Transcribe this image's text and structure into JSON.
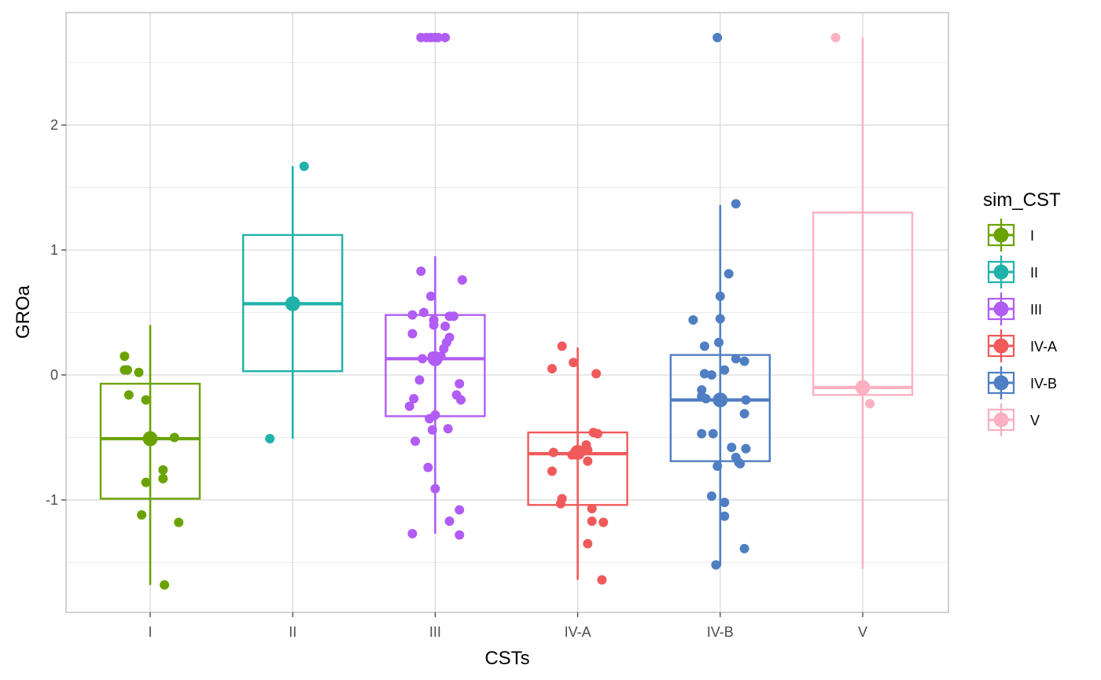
{
  "chart_data": {
    "type": "boxplot",
    "xlabel": "CSTs",
    "ylabel": "GROa",
    "categories": [
      "I",
      "II",
      "III",
      "IV-A",
      "IV-B",
      "V"
    ],
    "ylim": [
      -1.9,
      2.9
    ],
    "yticks": [
      -1,
      0,
      1,
      2
    ],
    "ytick_labels": [
      "-1",
      "0",
      "1",
      "2"
    ],
    "grid": true,
    "legend": {
      "title": "sim_CST",
      "position": "right",
      "entries": [
        "I",
        "II",
        "III",
        "IV-A",
        "IV-B",
        "V"
      ]
    },
    "series": [
      {
        "name": "I",
        "color": "#6AA300",
        "box": {
          "q1": -0.99,
          "median": -0.51,
          "q3": -0.07
        },
        "whisker": [
          -1.68,
          0.4
        ],
        "mean": -0.51,
        "points": [
          {
            "x": -0.18,
            "y": 0.15
          },
          {
            "x": -0.18,
            "y": 0.04
          },
          {
            "x": -0.16,
            "y": 0.04
          },
          {
            "x": -0.08,
            "y": 0.02
          },
          {
            "x": -0.15,
            "y": -0.16
          },
          {
            "x": -0.03,
            "y": -0.2
          },
          {
            "x": 0.17,
            "y": -0.5
          },
          {
            "x": 0.09,
            "y": -0.76
          },
          {
            "x": -0.03,
            "y": -0.86
          },
          {
            "x": 0.09,
            "y": -0.83
          },
          {
            "x": -0.06,
            "y": -1.12
          },
          {
            "x": 0.2,
            "y": -1.18
          },
          {
            "x": 0.1,
            "y": -1.68
          }
        ]
      },
      {
        "name": "II",
        "color": "#20B2AA",
        "box": {
          "q1": 0.03,
          "median": 0.57,
          "q3": 1.12
        },
        "whisker": [
          -0.51,
          1.67
        ],
        "mean": 0.57,
        "points": [
          {
            "x": 0.08,
            "y": 1.67
          },
          {
            "x": -0.16,
            "y": -0.51
          }
        ]
      },
      {
        "name": "III",
        "color": "#B15CF5",
        "box": {
          "q1": -0.33,
          "median": 0.13,
          "q3": 0.48
        },
        "whisker": [
          -1.27,
          0.95
        ],
        "mean": 0.13,
        "points": [
          {
            "x": -0.1,
            "y": 2.7
          },
          {
            "x": -0.06,
            "y": 2.7
          },
          {
            "x": -0.03,
            "y": 2.7
          },
          {
            "x": 0.0,
            "y": 2.7
          },
          {
            "x": 0.02,
            "y": 2.7
          },
          {
            "x": 0.07,
            "y": 2.7
          },
          {
            "x": -0.1,
            "y": 0.83
          },
          {
            "x": 0.19,
            "y": 0.76
          },
          {
            "x": -0.03,
            "y": 0.63
          },
          {
            "x": -0.16,
            "y": 0.48
          },
          {
            "x": -0.08,
            "y": 0.5
          },
          {
            "x": 0.1,
            "y": 0.47
          },
          {
            "x": 0.13,
            "y": 0.47
          },
          {
            "x": -0.01,
            "y": 0.44
          },
          {
            "x": -0.01,
            "y": 0.4
          },
          {
            "x": 0.07,
            "y": 0.39
          },
          {
            "x": -0.16,
            "y": 0.33
          },
          {
            "x": 0.1,
            "y": 0.3
          },
          {
            "x": 0.08,
            "y": 0.26
          },
          {
            "x": 0.06,
            "y": 0.21
          },
          {
            "x": -0.09,
            "y": 0.13
          },
          {
            "x": -0.02,
            "y": 0.15
          },
          {
            "x": 0.04,
            "y": 0.15
          },
          {
            "x": 0.01,
            "y": 0.13
          },
          {
            "x": -0.11,
            "y": -0.04
          },
          {
            "x": 0.17,
            "y": -0.07
          },
          {
            "x": 0.15,
            "y": -0.16
          },
          {
            "x": -0.15,
            "y": -0.19
          },
          {
            "x": 0.18,
            "y": -0.2
          },
          {
            "x": -0.18,
            "y": -0.25
          },
          {
            "x": -0.04,
            "y": -0.35
          },
          {
            "x": 0.0,
            "y": -0.32
          },
          {
            "x": -0.02,
            "y": -0.44
          },
          {
            "x": 0.09,
            "y": -0.43
          },
          {
            "x": -0.14,
            "y": -0.53
          },
          {
            "x": -0.05,
            "y": -0.74
          },
          {
            "x": 0.0,
            "y": -0.91
          },
          {
            "x": 0.17,
            "y": -1.08
          },
          {
            "x": 0.1,
            "y": -1.17
          },
          {
            "x": -0.16,
            "y": -1.27
          },
          {
            "x": 0.17,
            "y": -1.28
          }
        ]
      },
      {
        "name": "IV-A",
        "color": "#F05A5A",
        "box": {
          "q1": -1.04,
          "median": -0.63,
          "q3": -0.46
        },
        "whisker": [
          -1.64,
          0.22
        ],
        "mean": -0.62,
        "points": [
          {
            "x": -0.11,
            "y": 0.23
          },
          {
            "x": -0.18,
            "y": 0.05
          },
          {
            "x": -0.03,
            "y": 0.1
          },
          {
            "x": 0.13,
            "y": 0.01
          },
          {
            "x": 0.11,
            "y": -0.46
          },
          {
            "x": 0.14,
            "y": -0.47
          },
          {
            "x": 0.06,
            "y": -0.56
          },
          {
            "x": 0.02,
            "y": -0.62
          },
          {
            "x": -0.17,
            "y": -0.62
          },
          {
            "x": 0.07,
            "y": -0.6
          },
          {
            "x": -0.04,
            "y": -0.64
          },
          {
            "x": 0.07,
            "y": -0.69
          },
          {
            "x": -0.18,
            "y": -0.77
          },
          {
            "x": -0.11,
            "y": -0.99
          },
          {
            "x": -0.12,
            "y": -1.03
          },
          {
            "x": 0.1,
            "y": -1.07
          },
          {
            "x": 0.1,
            "y": -1.17
          },
          {
            "x": 0.18,
            "y": -1.18
          },
          {
            "x": 0.07,
            "y": -1.35
          },
          {
            "x": 0.17,
            "y": -1.64
          }
        ]
      },
      {
        "name": "IV-B",
        "color": "#4F7FC2",
        "box": {
          "q1": -0.69,
          "median": -0.2,
          "q3": 0.16
        },
        "whisker": [
          -1.53,
          1.36
        ],
        "mean": -0.2,
        "points": [
          {
            "x": -0.02,
            "y": 2.7
          },
          {
            "x": 0.11,
            "y": 1.37
          },
          {
            "x": 0.06,
            "y": 0.81
          },
          {
            "x": 0.0,
            "y": 0.63
          },
          {
            "x": -0.19,
            "y": 0.44
          },
          {
            "x": 0.0,
            "y": 0.45
          },
          {
            "x": -0.01,
            "y": 0.26
          },
          {
            "x": -0.11,
            "y": 0.23
          },
          {
            "x": 0.11,
            "y": 0.13
          },
          {
            "x": 0.17,
            "y": 0.11
          },
          {
            "x": 0.03,
            "y": 0.04
          },
          {
            "x": -0.11,
            "y": 0.01
          },
          {
            "x": -0.06,
            "y": 0.0
          },
          {
            "x": -0.13,
            "y": -0.12
          },
          {
            "x": -0.13,
            "y": -0.17
          },
          {
            "x": -0.1,
            "y": -0.19
          },
          {
            "x": 0.18,
            "y": -0.2
          },
          {
            "x": 0.17,
            "y": -0.31
          },
          {
            "x": -0.13,
            "y": -0.47
          },
          {
            "x": -0.05,
            "y": -0.47
          },
          {
            "x": 0.08,
            "y": -0.58
          },
          {
            "x": 0.18,
            "y": -0.59
          },
          {
            "x": 0.11,
            "y": -0.66
          },
          {
            "x": 0.13,
            "y": -0.7
          },
          {
            "x": -0.02,
            "y": -0.73
          },
          {
            "x": 0.14,
            "y": -0.71
          },
          {
            "x": -0.06,
            "y": -0.97
          },
          {
            "x": 0.03,
            "y": -1.02
          },
          {
            "x": 0.03,
            "y": -1.13
          },
          {
            "x": 0.17,
            "y": -1.39
          },
          {
            "x": -0.03,
            "y": -1.52
          }
        ]
      },
      {
        "name": "V",
        "color": "#FBB1C1",
        "box": {
          "q1": -0.16,
          "median": -0.1,
          "q3": 1.3
        },
        "whisker": [
          -1.55,
          2.7
        ],
        "mean": -0.1,
        "points": [
          {
            "x": -0.19,
            "y": 2.7
          },
          {
            "x": 0.05,
            "y": -0.23
          }
        ]
      }
    ]
  }
}
